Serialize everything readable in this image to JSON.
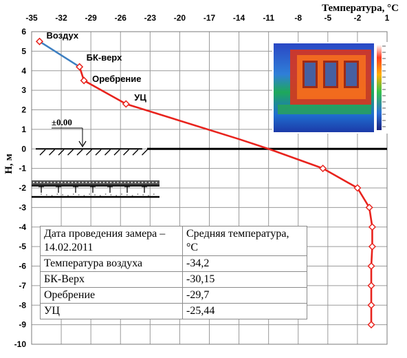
{
  "chart_data": {
    "type": "line",
    "xlabel": "Температура, °С",
    "ylabel": "Н, м",
    "xlim": [
      -35,
      1
    ],
    "ylim": [
      -10,
      6
    ],
    "x_ticks": [
      "-35",
      "-32",
      "-29",
      "-26",
      "-23",
      "-20",
      "-17",
      "-14",
      "-11",
      "-8",
      "-5",
      "-2",
      "1"
    ],
    "y_ticks": [
      "6",
      "5",
      "4",
      "3",
      "2",
      "1",
      "0",
      "-1",
      "-2",
      "-3",
      "-4",
      "-5",
      "-6",
      "-7",
      "-8",
      "-9",
      "-10"
    ],
    "grid": true,
    "series": [
      {
        "color": "#3d7fc1",
        "points": [
          [
            -34.2,
            5.5
          ],
          [
            -30.15,
            4.2
          ]
        ]
      },
      {
        "color": "#e8231d",
        "points": [
          [
            -30.15,
            4.2
          ],
          [
            -29.7,
            3.5
          ],
          [
            -25.44,
            2.3
          ],
          [
            -14,
            0.5
          ],
          [
            -11,
            0.0
          ],
          [
            -5.5,
            -1.0
          ],
          [
            -2.0,
            -2.0
          ],
          [
            -0.8,
            -3.0
          ],
          [
            -0.5,
            -4.0
          ],
          [
            -0.5,
            -5.0
          ],
          [
            -0.6,
            -6.0
          ],
          [
            -0.6,
            -7.0
          ],
          [
            -0.6,
            -8.0
          ],
          [
            -0.6,
            -9.0
          ]
        ],
        "markers": [
          [
            -30.15,
            4.2
          ],
          [
            -29.7,
            3.5
          ],
          [
            -25.44,
            2.3
          ],
          [
            -5.5,
            -1.0
          ],
          [
            -2.0,
            -2.0
          ],
          [
            -0.8,
            -3.0
          ],
          [
            -0.5,
            -4.0
          ],
          [
            -0.5,
            -5.0
          ],
          [
            -0.6,
            -6.0
          ],
          [
            -0.6,
            -7.0
          ],
          [
            -0.6,
            -8.0
          ],
          [
            -0.6,
            -9.0
          ]
        ]
      }
    ],
    "annotations": [
      {
        "text": "Воздух",
        "x": -34.2,
        "y": 5.5
      },
      {
        "text": "БК-верх",
        "x": -30.15,
        "y": 4.2
      },
      {
        "text": "Оребрение",
        "x": -29.7,
        "y": 3.5
      },
      {
        "text": "УЦ",
        "x": -25.44,
        "y": 2.3
      }
    ],
    "zero_mark_label": "±0.00"
  },
  "table": {
    "header": [
      "Дата проведения замера – 14.02.2011",
      "Средняя температура, °С"
    ],
    "rows": [
      [
        "Температура воздуха",
        "-34,2"
      ],
      [
        "БК-Верх",
        "-30,15"
      ],
      [
        "Оребрение",
        "-29,7"
      ],
      [
        "УЦ",
        "-25,44"
      ]
    ]
  }
}
